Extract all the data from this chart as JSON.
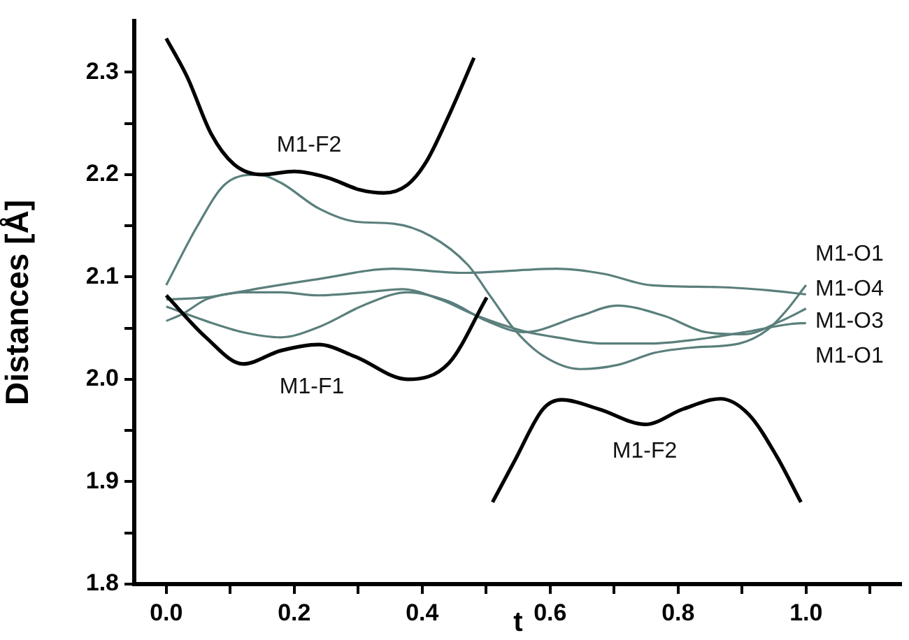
{
  "chart_data": {
    "type": "line",
    "xlabel": "t",
    "ylabel": "Distances [Å]",
    "xlim": [
      -0.05,
      1.15
    ],
    "xticks": [
      {
        "value": 0,
        "label": "0.0"
      },
      {
        "value": 0.1,
        "label": null
      },
      {
        "value": 0.2,
        "label": "0.2"
      },
      {
        "value": 0.3,
        "label": null
      },
      {
        "value": 0.4,
        "label": "0.4"
      },
      {
        "value": 0.5,
        "label": null
      },
      {
        "value": 0.6,
        "label": "0.6"
      },
      {
        "value": 0.7,
        "label": null
      },
      {
        "value": 0.8,
        "label": "0.8"
      },
      {
        "value": 0.9,
        "label": null
      },
      {
        "value": 1.0,
        "label": "1.0"
      },
      {
        "value": 1.1,
        "label": null
      }
    ],
    "ylim": [
      1.8,
      2.35
    ],
    "yticks": [
      {
        "value": 1.8,
        "label": "1.8"
      },
      {
        "value": 1.85,
        "label": null
      },
      {
        "value": 1.9,
        "label": "1.9"
      },
      {
        "value": 1.95,
        "label": null
      },
      {
        "value": 2.0,
        "label": "2.0"
      },
      {
        "value": 2.05,
        "label": null
      },
      {
        "value": 2.1,
        "label": "2.1"
      },
      {
        "value": 2.15,
        "label": null
      },
      {
        "value": 2.2,
        "label": "2.2"
      },
      {
        "value": 2.25,
        "label": null
      },
      {
        "value": 2.3,
        "label": "2.3"
      }
    ],
    "grid": false,
    "legend": false,
    "marker": "none",
    "line_style": "solid",
    "series": [
      {
        "name": "M1-F2",
        "color": "#000000",
        "x": [
          0,
          0.033,
          0.07,
          0.106,
          0.15,
          0.2,
          0.252,
          0.303,
          0.34,
          0.377,
          0.406,
          0.442,
          0.481
        ],
        "values": [
          2.333,
          2.295,
          2.24,
          2.21,
          2.2,
          2.203,
          2.197,
          2.185,
          2.182,
          2.19,
          2.212,
          2.258,
          2.314
        ]
      },
      {
        "name": "M1-F1",
        "color": "#000000",
        "x": [
          0,
          0.062,
          0.12,
          0.179,
          0.238,
          0.296,
          0.377,
          0.442,
          0.501
        ],
        "values": [
          2.082,
          2.041,
          2.015,
          2.028,
          2.034,
          2.022,
          2.0,
          2.016,
          2.08
        ]
      },
      {
        "name": "M1-F2",
        "color": "#000000",
        "x": [
          0.51,
          0.545,
          0.589,
          0.618,
          0.676,
          0.749,
          0.808,
          0.866,
          0.91,
          0.954,
          0.992
        ],
        "values": [
          1.88,
          1.921,
          1.971,
          1.98,
          1.971,
          1.956,
          1.971,
          1.981,
          1.966,
          1.925,
          1.88
        ]
      },
      {
        "name": "M1-O1",
        "color": "#5a7f7c",
        "x": [
          0,
          0.048,
          0.091,
          0.143,
          0.179,
          0.238,
          0.296,
          0.355,
          0.413,
          0.471,
          0.508,
          0.545,
          0.589,
          0.647,
          0.705,
          0.764,
          0.822,
          0.896,
          0.939,
          0.969,
          1.0
        ],
        "values": [
          2.092,
          2.149,
          2.19,
          2.2,
          2.192,
          2.167,
          2.154,
          2.152,
          2.14,
          2.112,
          2.08,
          2.048,
          2.023,
          2.01,
          2.014,
          2.026,
          2.031,
          2.035,
          2.048,
          2.067,
          2.092
        ]
      },
      {
        "name": "M1-O4",
        "color": "#5a7f7c",
        "x": [
          0,
          0.026,
          0.062,
          0.12,
          0.238,
          0.355,
          0.464,
          0.61,
          0.684,
          0.757,
          0.866,
          0.94,
          1.0
        ],
        "values": [
          2.057,
          2.064,
          2.078,
          2.086,
          2.098,
          2.108,
          2.104,
          2.108,
          2.103,
          2.092,
          2.09,
          2.087,
          2.083
        ]
      },
      {
        "name": "M1-O3",
        "color": "#5a7f7c",
        "x": [
          0,
          0.062,
          0.12,
          0.179,
          0.238,
          0.311,
          0.377,
          0.442,
          0.501,
          0.559,
          0.647,
          0.705,
          0.778,
          0.844,
          0.903,
          0.961,
          1.0
        ],
        "values": [
          2.071,
          2.057,
          2.046,
          2.041,
          2.051,
          2.073,
          2.085,
          2.076,
          2.057,
          2.046,
          2.062,
          2.072,
          2.062,
          2.046,
          2.044,
          2.057,
          2.069
        ]
      },
      {
        "name": "M1-O1",
        "color": "#5a7f7c",
        "x": [
          0,
          0.062,
          0.12,
          0.179,
          0.238,
          0.311,
          0.369,
          0.428,
          0.486,
          0.559,
          0.61,
          0.684,
          0.757,
          0.83,
          0.903,
          0.976,
          1.0
        ],
        "values": [
          2.078,
          2.08,
          2.085,
          2.085,
          2.082,
          2.085,
          2.088,
          2.078,
          2.062,
          2.047,
          2.041,
          2.035,
          2.035,
          2.039,
          2.046,
          2.054,
          2.055
        ]
      }
    ]
  }
}
